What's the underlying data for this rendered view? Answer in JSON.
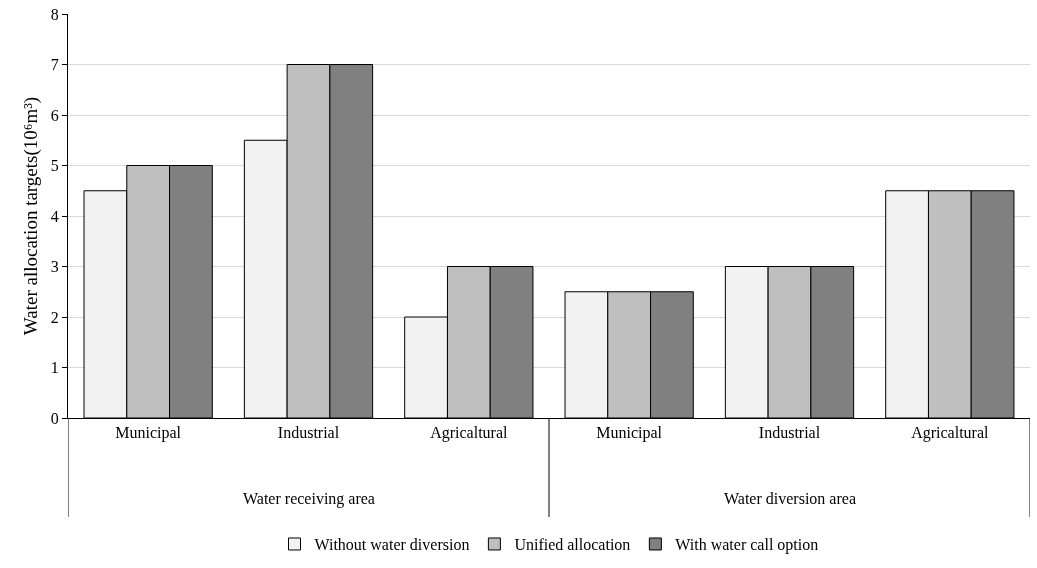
{
  "chart_data": {
    "type": "bar",
    "ylabel": "Water allocation targets(10⁶m³)",
    "categories": [
      "Municipal",
      "Industrial",
      "Agricaltural",
      "Municipal",
      "Industrial",
      "Agricaltural"
    ],
    "series": [
      {
        "name": "Without water diversion",
        "color": "#f2f2f2",
        "values": [
          4.5,
          5.5,
          2,
          2.5,
          3,
          4.5
        ]
      },
      {
        "name": "Unified allocation",
        "color": "#bfbfbf",
        "values": [
          5,
          7,
          3,
          2.5,
          3,
          4.5
        ]
      },
      {
        "name": "With water call option",
        "color": "#808080",
        "values": [
          5,
          7,
          3,
          2.5,
          3,
          4.5
        ]
      }
    ],
    "annotations": [
      "Water receiving area",
      "Water diversion area"
    ],
    "ylim": [
      0,
      8
    ],
    "yticks": [
      0,
      1,
      2,
      3,
      4,
      5,
      6,
      7,
      8
    ],
    "grid": "y",
    "legend": "bottom"
  }
}
